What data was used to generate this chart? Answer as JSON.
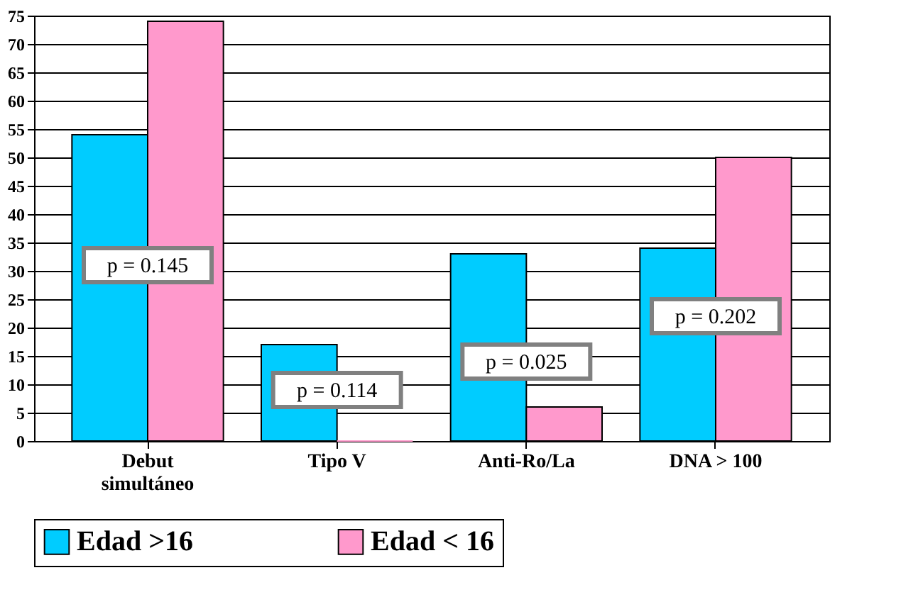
{
  "chart_data": {
    "type": "bar",
    "categories": [
      "Debut simultáneo",
      "Tipo V",
      "Anti-Ro/La",
      "DNA > 100"
    ],
    "series": [
      {
        "name": "Edad >16",
        "color": "#00ccff",
        "values": [
          54,
          17,
          33,
          34
        ]
      },
      {
        "name": "Edad < 16",
        "color": "#ff99cc",
        "values": [
          74,
          0,
          6,
          50
        ]
      }
    ],
    "ylim": [
      0,
      75
    ],
    "yticks": [
      0,
      5,
      10,
      15,
      20,
      25,
      30,
      35,
      40,
      45,
      50,
      55,
      60,
      65,
      70,
      75
    ],
    "grid": "y",
    "legend": "bottom",
    "annotations": [
      {
        "text": "p = 0.145",
        "x": "Debut simultáneo",
        "y": 31
      },
      {
        "text": "p = 0.114",
        "x": "Tipo V",
        "y": 9
      },
      {
        "text": "p = 0.025",
        "x": "Anti-Ro/La",
        "y": 14
      },
      {
        "text": "p = 0.202",
        "x": "DNA > 100",
        "y": 22
      }
    ]
  }
}
